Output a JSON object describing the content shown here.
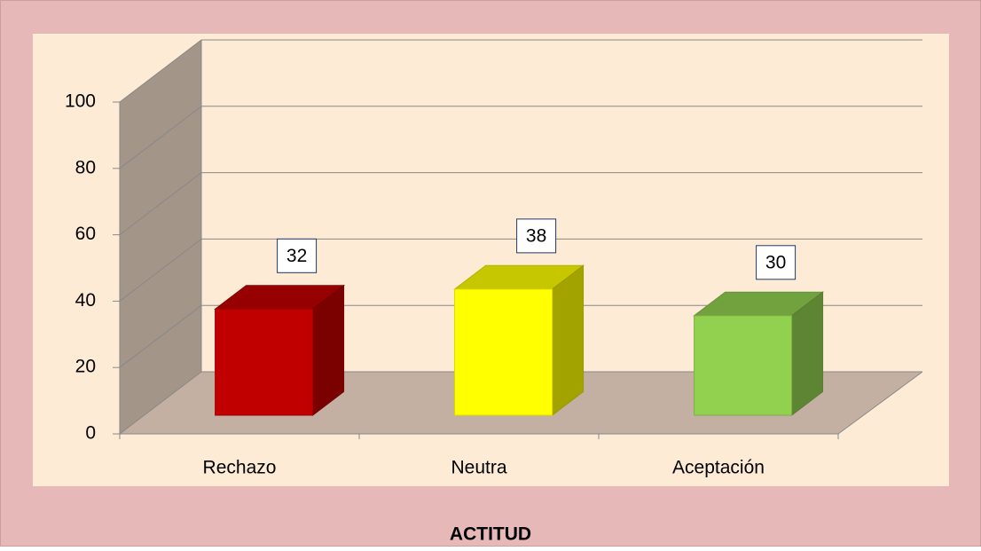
{
  "chart_data": {
    "type": "bar3d",
    "title": "ACTITUD",
    "categories": [
      "Rechazo",
      "Neutra",
      "Aceptación"
    ],
    "values": [
      32,
      38,
      30
    ],
    "colors": [
      "#c00000",
      "#ffff00",
      "#92d050"
    ],
    "ylim": [
      0,
      100
    ],
    "yticks": [
      0,
      20,
      40,
      60,
      80,
      100
    ],
    "grid": true
  }
}
